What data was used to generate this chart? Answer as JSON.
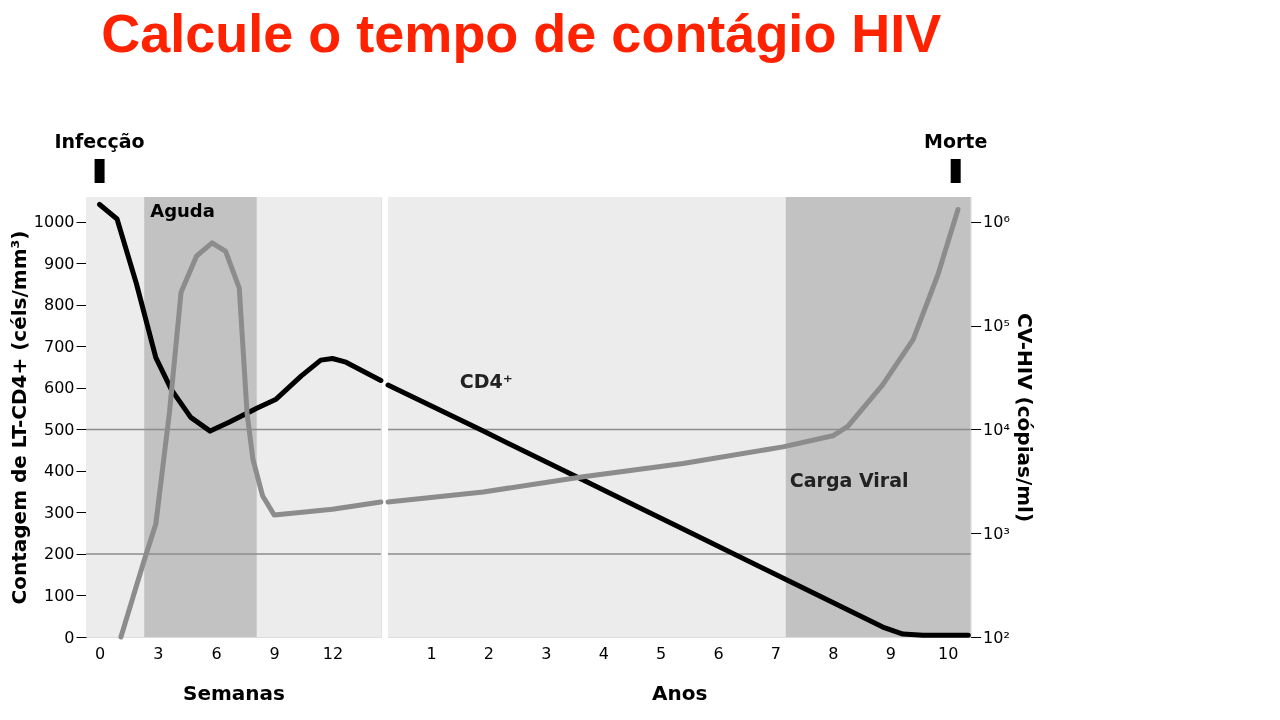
{
  "chart_data": [
    {
      "type": "line",
      "title": "Calcule o tempo de contágio HIV",
      "ylabel": "Contagem de LT-CD4+ (céls/mm³)",
      "xlabel": "Semanas",
      "xlim": [
        -0.7,
        14.5
      ],
      "xticks": [
        0,
        3,
        6,
        9,
        12
      ],
      "ylim": [
        0,
        1060
      ],
      "yticks": [
        0,
        100,
        200,
        300,
        400,
        500,
        600,
        700,
        800,
        900,
        1000
      ],
      "y2lim": [
        100,
        1740000
      ],
      "log": "y2",
      "legend": false,
      "marker": "none",
      "line_style": "solid",
      "series": [
        {
          "color": "#000000",
          "x": [
            0,
            0.9,
            1.9,
            2.9,
            3.7,
            4.7,
            5.7,
            6.7,
            8.1,
            9.1,
            10.4,
            11.4,
            12.0,
            12.7,
            14.5
          ],
          "values": [
            1042,
            1007,
            851,
            673,
            596,
            529,
            496,
            518,
            551,
            573,
            629,
            667,
            671,
            662,
            618
          ]
        },
        {
          "color": "#8c8c8c",
          "axis": "y2",
          "x": [
            1.1,
            2.3,
            2.9,
            3.6,
            4.2,
            5.0,
            5.8,
            6.5,
            7.2,
            7.6,
            7.9,
            8.4,
            9.0,
            12.0,
            14.5
          ],
          "values": [
            100,
            550,
            1230,
            14500,
            210000,
            470000,
            630000,
            520000,
            230000,
            14500,
            5200,
            2300,
            1500,
            1700,
            2000
          ]
        }
      ],
      "bands": [
        {
          "axis": "x",
          "from": 2.3,
          "to": 8.1,
          "label": "Aguda",
          "color": "#b4b4b4"
        }
      ],
      "ref_lines": [
        {
          "axis": "y",
          "value": 500,
          "label": null,
          "color": "#8c8c8c"
        },
        {
          "axis": "y",
          "value": 200,
          "label": null,
          "color": "#8c8c8c"
        },
        {
          "axis": "x",
          "value": 0,
          "label": "Infecção",
          "color": "#000000"
        }
      ]
    },
    {
      "type": "line",
      "xlabel": "Anos",
      "y2label": "CV-HIV (cópias/ml)",
      "xlim": [
        0.25,
        10.4
      ],
      "xticks": [
        1,
        2,
        3,
        4,
        5,
        6,
        7,
        8,
        9,
        10
      ],
      "ylim": [
        0,
        1060
      ],
      "y2lim": [
        100,
        1740000
      ],
      "y2ticks": [
        {
          "value": 100,
          "label": "10²"
        },
        {
          "value": 1000,
          "label": "10³"
        },
        {
          "value": 10000,
          "label": "10⁴"
        },
        {
          "value": 100000,
          "label": "10⁵"
        },
        {
          "value": 1000000,
          "label": "10⁶"
        }
      ],
      "log": "y2",
      "legend": false,
      "marker": "none",
      "line_style": "solid",
      "series": [
        {
          "name": "CD4⁺",
          "color": "#000000",
          "x": [
            0.25,
            1.91,
            3.65,
            5.39,
            7.13,
            8.87,
            9.22,
            9.57,
            10.36
          ],
          "values": [
            607,
            496,
            378,
            260,
            142,
            24,
            7,
            4,
            4
          ]
        },
        {
          "name": "Carga Viral",
          "color": "#8c8c8c",
          "axis": "y2",
          "x": [
            0.25,
            1.91,
            3.65,
            5.39,
            7.13,
            8.0,
            8.26,
            8.87,
            9.4,
            9.83,
            10.18
          ],
          "values": [
            2000,
            2500,
            3500,
            4700,
            6800,
            8700,
            10700,
            27000,
            74000,
            310000,
            1320000
          ]
        }
      ],
      "bands": [
        {
          "axis": "x",
          "from": 7.18,
          "to": 10.4,
          "label": null,
          "color": "#b4b4b4"
        }
      ],
      "ref_lines": [
        {
          "axis": "y",
          "value": 500,
          "label": null,
          "color": "#8c8c8c"
        },
        {
          "axis": "y",
          "value": 200,
          "label": null,
          "color": "#8c8c8c"
        },
        {
          "axis": "x",
          "value": 10.14,
          "label": "Morte",
          "color": "#000000"
        }
      ]
    }
  ]
}
